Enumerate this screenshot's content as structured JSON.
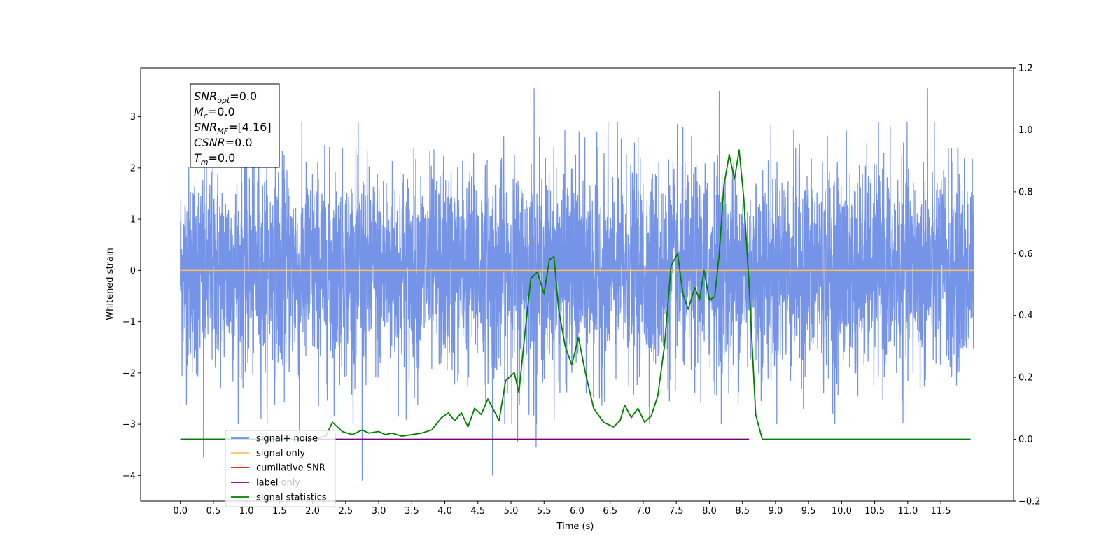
{
  "chart_data": {
    "type": "line",
    "xlabel": "Time (s)",
    "ylabel": "Whitened strain",
    "xlim": [
      -0.6,
      12.6
    ],
    "ylim": [
      -4.5,
      3.95
    ],
    "ylim_right": [
      -0.2,
      1.2
    ],
    "x_ticks": [
      "0.0",
      "0.5",
      "1.0",
      "1.5",
      "2.0",
      "2.5",
      "3.0",
      "3.5",
      "4.0",
      "4.5",
      "5.0",
      "5.5",
      "6.0",
      "6.5",
      "7.0",
      "7.5",
      "8.0",
      "8.5",
      "9.0",
      "9.5",
      "10.0",
      "10.5",
      "11.0",
      "11.5"
    ],
    "y_ticks_left": [
      "−4",
      "−3",
      "−2",
      "−1",
      "0",
      "1",
      "2",
      "3"
    ],
    "y_ticks_right": [
      "−0.2",
      "0.0",
      "0.2",
      "0.4",
      "0.6",
      "0.8",
      "1.0",
      "1.2"
    ],
    "grid": false,
    "legend_position": "lower-left",
    "series": [
      {
        "name": "signal+ noise",
        "color": "#6f8ee6",
        "axis": "left",
        "description": "dense noise trace, range approx −4.1 to 3.6 over 0–12 s",
        "x_range": [
          0.0,
          12.0
        ],
        "y_spikes": [
          [
            0.35,
            -3.65
          ],
          [
            2.75,
            -4.1
          ],
          [
            4.72,
            -4.0
          ],
          [
            5.38,
            -3.45
          ],
          [
            5.35,
            3.55
          ],
          [
            8.15,
            3.5
          ],
          [
            11.3,
            3.55
          ],
          [
            1.8,
            -3.3
          ],
          [
            5.1,
            -3.35
          ]
        ]
      },
      {
        "name": "signal only",
        "color": "#ffbf60",
        "axis": "left",
        "x": [
          0.0,
          12.0
        ],
        "y": [
          0.0,
          0.0
        ]
      },
      {
        "name": "cumilative SNR",
        "color": "#ff0000",
        "axis": "right",
        "x": [],
        "y": []
      },
      {
        "name": "label",
        "color": "#7a007a",
        "axis": "right",
        "x": [
          0.0,
          8.6
        ],
        "y": [
          0.0,
          0.0
        ]
      },
      {
        "name": "signal statistics",
        "color": "#008000",
        "axis": "right",
        "x": [
          0.0,
          2.0,
          2.2,
          2.3,
          2.45,
          2.6,
          2.75,
          2.85,
          3.0,
          3.1,
          3.2,
          3.35,
          3.5,
          3.65,
          3.8,
          3.95,
          4.05,
          4.15,
          4.25,
          4.35,
          4.45,
          4.55,
          4.65,
          4.75,
          4.82,
          4.92,
          5.05,
          5.12,
          5.2,
          5.3,
          5.4,
          5.5,
          5.58,
          5.65,
          5.72,
          5.82,
          5.92,
          6.02,
          6.12,
          6.25,
          6.4,
          6.55,
          6.65,
          6.72,
          6.82,
          6.92,
          7.02,
          7.12,
          7.22,
          7.32,
          7.42,
          7.52,
          7.6,
          7.68,
          7.78,
          7.85,
          7.92,
          8.0,
          8.08,
          8.15,
          8.22,
          8.3,
          8.38,
          8.45,
          8.52,
          8.6,
          8.7,
          8.8,
          9.0,
          10.0,
          11.0,
          11.95
        ],
        "y": [
          0.0,
          0.0,
          0.01,
          0.055,
          0.025,
          0.015,
          0.03,
          0.02,
          0.025,
          0.015,
          0.02,
          0.01,
          0.015,
          0.02,
          0.03,
          0.07,
          0.085,
          0.06,
          0.085,
          0.04,
          0.1,
          0.08,
          0.13,
          0.09,
          0.06,
          0.19,
          0.215,
          0.15,
          0.32,
          0.52,
          0.54,
          0.47,
          0.58,
          0.59,
          0.42,
          0.3,
          0.24,
          0.33,
          0.22,
          0.1,
          0.055,
          0.04,
          0.06,
          0.11,
          0.07,
          0.1,
          0.055,
          0.075,
          0.14,
          0.3,
          0.56,
          0.6,
          0.47,
          0.42,
          0.49,
          0.45,
          0.545,
          0.45,
          0.46,
          0.6,
          0.82,
          0.92,
          0.84,
          0.935,
          0.78,
          0.5,
          0.08,
          0.0,
          0.0,
          0.0,
          0.0,
          0.0
        ]
      }
    ],
    "annotation_lines": [
      {
        "label": "SNR",
        "sub": "opt",
        "value": "=0.0"
      },
      {
        "label": "M",
        "sub": "c",
        "value": "=0.0"
      },
      {
        "label": "SNR",
        "sub": "MF",
        "value": "=[4.16]"
      },
      {
        "label": "CSNR",
        "sub": "",
        "value": "=0.0"
      },
      {
        "label": "T",
        "sub": "m",
        "value": "=0.0"
      }
    ],
    "legend_overlap_text": [
      "signal only",
      "label only"
    ]
  }
}
